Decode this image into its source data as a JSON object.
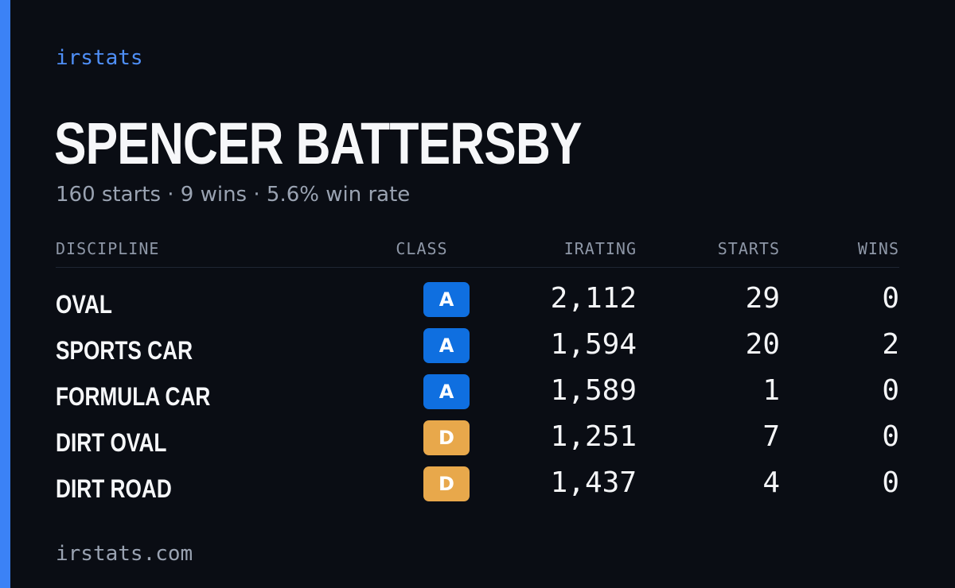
{
  "brand": "irstats",
  "player": {
    "name": "SPENCER BATTERSBY",
    "summary": "160 starts · 9 wins · 5.6% win rate"
  },
  "table": {
    "headers": {
      "discipline": "DISCIPLINE",
      "class": "CLASS",
      "irating": "IRATING",
      "starts": "STARTS",
      "wins": "WINS"
    },
    "rows": [
      {
        "discipline": "OVAL",
        "class": "A",
        "irating": "2,112",
        "starts": "29",
        "wins": "0"
      },
      {
        "discipline": "SPORTS CAR",
        "class": "A",
        "irating": "1,594",
        "starts": "20",
        "wins": "2"
      },
      {
        "discipline": "FORMULA CAR",
        "class": "A",
        "irating": "1,589",
        "starts": "1",
        "wins": "0"
      },
      {
        "discipline": "DIRT OVAL",
        "class": "D",
        "irating": "1,251",
        "starts": "7",
        "wins": "0"
      },
      {
        "discipline": "DIRT ROAD",
        "class": "D",
        "irating": "1,437",
        "starts": "4",
        "wins": "0"
      }
    ]
  },
  "class_colors": {
    "A": {
      "bg": "#0f6fe0",
      "fg": "#ffffff"
    },
    "D": {
      "bg": "#e8a84b",
      "fg": "#ffffff"
    }
  },
  "colors": {
    "accent": "#3b82f6",
    "background": "#0a0d14"
  },
  "footer": "irstats.com"
}
